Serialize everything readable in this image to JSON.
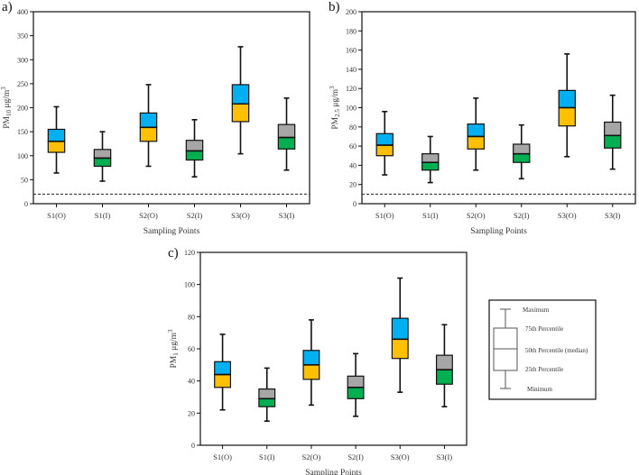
{
  "colors": {
    "outdoor_upper": "#00b0f0",
    "outdoor_lower": "#ffc000",
    "indoor_upper": "#a6a6a6",
    "indoor_lower": "#00b050"
  },
  "legend": {
    "items": [
      "Maximum",
      "75th Percentile",
      "50th Percentile (median)",
      "25th Percentile",
      "Minimum"
    ]
  },
  "chart_data": [
    {
      "type": "box",
      "panel_label": "a)",
      "xlabel": "Sampling Points",
      "ylabel": {
        "main": "PM",
        "sub": "10",
        "unit": " μg/m",
        "sup": "3"
      },
      "ylim": [
        0,
        400
      ],
      "yticks": [
        0,
        50,
        100,
        150,
        200,
        250,
        300,
        350,
        400
      ],
      "reference_line": 20,
      "categories": [
        "S1(O)",
        "S1(I)",
        "S2(O)",
        "S2(I)",
        "S3(O)",
        "S3(I)"
      ],
      "boxes": [
        {
          "min": 64,
          "q1": 107,
          "median": 130,
          "q3": 155,
          "max": 202
        },
        {
          "min": 47,
          "q1": 78,
          "median": 95,
          "q3": 113,
          "max": 150
        },
        {
          "min": 78,
          "q1": 130,
          "median": 159,
          "q3": 189,
          "max": 248
        },
        {
          "min": 56,
          "q1": 91,
          "median": 110,
          "q3": 132,
          "max": 175
        },
        {
          "min": 104,
          "q1": 171,
          "median": 208,
          "q3": 248,
          "max": 327
        },
        {
          "min": 70,
          "q1": 114,
          "median": 138,
          "q3": 165,
          "max": 220
        }
      ]
    },
    {
      "type": "box",
      "panel_label": "b)",
      "xlabel": "Sampling Points",
      "ylabel": {
        "main": "PM",
        "sub": "2.5",
        "unit": " μg/m",
        "sup": "3"
      },
      "ylim": [
        0,
        200
      ],
      "yticks": [
        0,
        20,
        40,
        60,
        80,
        100,
        120,
        140,
        160,
        180,
        200
      ],
      "reference_line": 10,
      "categories": [
        "S1(O)",
        "S1(I)",
        "S2(O)",
        "S2(I)",
        "S3(O)",
        "S3(I)"
      ],
      "boxes": [
        {
          "min": 30,
          "q1": 50,
          "median": 61,
          "q3": 73,
          "max": 96
        },
        {
          "min": 22,
          "q1": 35,
          "median": 43,
          "q3": 52,
          "max": 70
        },
        {
          "min": 35,
          "q1": 57,
          "median": 70,
          "q3": 83,
          "max": 110
        },
        {
          "min": 26,
          "q1": 43,
          "median": 52,
          "q3": 62,
          "max": 82
        },
        {
          "min": 49,
          "q1": 81,
          "median": 100,
          "q3": 118,
          "max": 156
        },
        {
          "min": 36,
          "q1": 58,
          "median": 71,
          "q3": 85,
          "max": 113
        }
      ]
    },
    {
      "type": "box",
      "panel_label": "c)",
      "xlabel": "Sampling Points",
      "ylabel": {
        "main": "PM",
        "sub": "1",
        "unit": " μg/m",
        "sup": "3"
      },
      "ylim": [
        0,
        120
      ],
      "yticks": [
        0,
        20,
        40,
        60,
        80,
        100,
        120
      ],
      "reference_line": null,
      "categories": [
        "S1(O)",
        "S1(I)",
        "S2(O)",
        "S2(I)",
        "S3(O)",
        "S3(I)"
      ],
      "boxes": [
        {
          "min": 22,
          "q1": 36,
          "median": 44,
          "q3": 52,
          "max": 69
        },
        {
          "min": 15,
          "q1": 24,
          "median": 29,
          "q3": 35,
          "max": 48
        },
        {
          "min": 25,
          "q1": 41,
          "median": 50,
          "q3": 59,
          "max": 78
        },
        {
          "min": 18,
          "q1": 29,
          "median": 36,
          "q3": 43,
          "max": 57
        },
        {
          "min": 33,
          "q1": 54,
          "median": 66,
          "q3": 79,
          "max": 104
        },
        {
          "min": 24,
          "q1": 38,
          "median": 47,
          "q3": 56,
          "max": 75
        }
      ]
    }
  ]
}
